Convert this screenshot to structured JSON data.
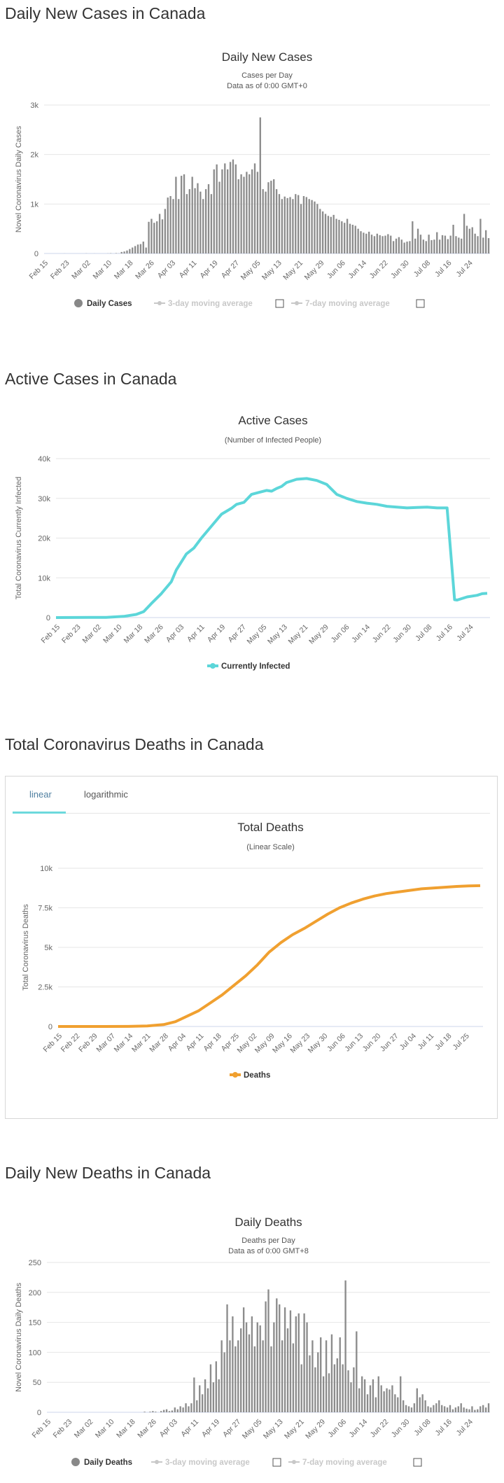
{
  "sections": {
    "daily_cases_title": "Daily New Cases in Canada",
    "active_title": "Active Cases in Canada",
    "deaths_title": "Total Coronavirus Deaths in Canada",
    "daily_deaths_title": "Daily New Deaths in Canada"
  },
  "deaths_tabs": {
    "linear": "linear",
    "log": "logarithmic"
  },
  "colors": {
    "bars": "#8c8c8c",
    "active": "#5cd6d9",
    "deaths": "#f0a030",
    "disabled": "#c8c8c8"
  },
  "chart_data": [
    {
      "type": "bar",
      "title": "Daily New Cases",
      "subtitle": "Cases per Day",
      "subtitle2": "Data as of 0:00 GMT+0",
      "ylabel": "Novel Coronavirus Daily Cases",
      "ylim": [
        0,
        3000
      ],
      "yticks": [
        "0",
        "1k",
        "2k",
        "3k"
      ],
      "xticks": [
        "Feb 15",
        "Feb 23",
        "Mar 02",
        "Mar 10",
        "Mar 18",
        "Mar 26",
        "Apr 03",
        "Apr 11",
        "Apr 19",
        "Apr 27",
        "May 05",
        "May 13",
        "May 21",
        "May 29",
        "Jun 06",
        "Jun 14",
        "Jun 22",
        "Jun 30",
        "Jul 08",
        "Jul 16",
        "Jul 24"
      ],
      "start_label": "Feb 15",
      "legend": [
        "Daily Cases",
        "3-day moving average",
        "7-day moving average"
      ],
      "values": [
        0,
        0,
        0,
        0,
        0,
        0,
        0,
        1,
        0,
        0,
        0,
        0,
        0,
        0,
        0,
        2,
        0,
        0,
        1,
        0,
        0,
        0,
        0,
        2,
        5,
        0,
        7,
        2,
        30,
        40,
        60,
        90,
        120,
        150,
        180,
        190,
        240,
        120,
        640,
        700,
        620,
        650,
        800,
        690,
        900,
        1130,
        1160,
        1100,
        1550,
        1100,
        1570,
        1600,
        1200,
        1300,
        1550,
        1320,
        1420,
        1250,
        1100,
        1300,
        1400,
        1200,
        1700,
        1800,
        1450,
        1700,
        1820,
        1700,
        1850,
        1900,
        1800,
        1500,
        1600,
        1550,
        1650,
        1600,
        1700,
        1820,
        1650,
        2750,
        1300,
        1250,
        1440,
        1470,
        1500,
        1300,
        1200,
        1100,
        1150,
        1120,
        1140,
        1100,
        1200,
        1180,
        1000,
        1160,
        1140,
        1100,
        1080,
        1050,
        1000,
        900,
        850,
        800,
        760,
        740,
        780,
        700,
        680,
        650,
        620,
        700,
        600,
        580,
        560,
        500,
        450,
        420,
        400,
        440,
        380,
        350,
        400,
        370,
        350,
        360,
        390,
        360,
        250,
        300,
        330,
        280,
        220,
        240,
        250,
        650,
        300,
        500,
        380,
        280,
        250,
        380,
        270,
        280,
        430,
        280,
        370,
        360,
        290,
        360,
        580,
        350,
        320,
        300,
        800,
        560,
        500,
        530,
        400,
        350,
        700,
        320,
        470,
        310
      ]
    },
    {
      "type": "line",
      "title": "Active Cases",
      "subtitle": "(Number of Infected People)",
      "ylabel": "Total Coronavirus Currently Infected",
      "ylim": [
        0,
        40000
      ],
      "yticks": [
        "0",
        "10k",
        "20k",
        "30k",
        "40k"
      ],
      "xticks": [
        "Feb 15",
        "Feb 23",
        "Mar 02",
        "Mar 10",
        "Mar 18",
        "Mar 26",
        "Apr 03",
        "Apr 11",
        "Apr 19",
        "Apr 27",
        "May 05",
        "May 13",
        "May 21",
        "May 29",
        "Jun 06",
        "Jun 14",
        "Jun 22",
        "Jun 30",
        "Jul 08",
        "Jul 16",
        "Jul 24"
      ],
      "start_label": "Feb 15",
      "legend": [
        "Currently Infected"
      ],
      "x": [
        0,
        20,
        27,
        32,
        35,
        38,
        42,
        46,
        48,
        52,
        55,
        58,
        62,
        66,
        70,
        72,
        75,
        78,
        81,
        84,
        86,
        88,
        90,
        92,
        96,
        100,
        104,
        108,
        112,
        116,
        120,
        124,
        128,
        132,
        136,
        140,
        144,
        148,
        152,
        156,
        159,
        160,
        164,
        168,
        170,
        172
      ],
      "values": [
        0,
        50,
        300,
        800,
        1500,
        3500,
        6000,
        9000,
        12000,
        16000,
        17500,
        20000,
        23000,
        26000,
        27500,
        28500,
        29000,
        31000,
        31500,
        32000,
        31800,
        32500,
        33000,
        34000,
        34800,
        35000,
        34500,
        33500,
        31000,
        30000,
        29200,
        28800,
        28500,
        28000,
        27800,
        27600,
        27700,
        27800,
        27600,
        27600,
        4500,
        4400,
        5200,
        5600,
        6000,
        6100
      ]
    },
    {
      "type": "line",
      "title": "Total Deaths",
      "subtitle": "(Linear Scale)",
      "ylabel": "Total Coronavirus Deaths",
      "ylim": [
        0,
        10000
      ],
      "yticks": [
        "0",
        "2.5k",
        "5k",
        "7.5k",
        "10k"
      ],
      "xticks": [
        "Feb 15",
        "Feb 22",
        "Feb 29",
        "Mar 07",
        "Mar 14",
        "Mar 21",
        "Mar 28",
        "Apr 04",
        "Apr 11",
        "Apr 18",
        "Apr 25",
        "May 02",
        "May 09",
        "May 16",
        "May 23",
        "May 30",
        "Jun 06",
        "Jun 13",
        "Jun 20",
        "Jun 27",
        "Jul 04",
        "Jul 11",
        "Jul 18",
        "Jul 25"
      ],
      "start_label": "Feb 15",
      "legend": [
        "Deaths"
      ],
      "x": [
        0,
        20,
        30,
        38,
        45,
        50,
        55,
        60,
        65,
        70,
        75,
        80,
        85,
        90,
        95,
        100,
        105,
        110,
        115,
        120,
        125,
        130,
        135,
        140,
        145,
        150,
        155,
        160,
        165,
        170,
        175,
        180
      ],
      "values": [
        0,
        1,
        5,
        30,
        120,
        300,
        650,
        1000,
        1500,
        2000,
        2600,
        3200,
        3900,
        4700,
        5300,
        5800,
        6200,
        6650,
        7100,
        7500,
        7800,
        8050,
        8250,
        8400,
        8500,
        8600,
        8700,
        8750,
        8800,
        8850,
        8880,
        8900
      ]
    },
    {
      "type": "bar",
      "title": "Daily Deaths",
      "subtitle": "Deaths per Day",
      "subtitle2": "Data as of 0:00 GMT+8",
      "ylabel": "Novel Coronavirus Daily Deaths",
      "ylim": [
        0,
        250
      ],
      "yticks": [
        "0",
        "50",
        "100",
        "150",
        "200",
        "250"
      ],
      "xticks": [
        "Feb 15",
        "Feb 23",
        "Mar 02",
        "Mar 10",
        "Mar 18",
        "Mar 26",
        "Apr 03",
        "Apr 11",
        "Apr 19",
        "Apr 27",
        "May 05",
        "May 13",
        "May 21",
        "May 29",
        "Jun 06",
        "Jun 14",
        "Jun 22",
        "Jun 30",
        "Jul 08",
        "Jul 16",
        "Jul 24"
      ],
      "start_label": "Feb 15",
      "legend": [
        "Daily Deaths",
        "3-day moving average",
        "7-day moving average"
      ],
      "values": [
        0,
        0,
        0,
        0,
        0,
        0,
        0,
        0,
        0,
        0,
        0,
        0,
        0,
        0,
        0,
        0,
        0,
        0,
        0,
        0,
        0,
        0,
        0,
        0,
        0,
        0,
        0,
        0,
        0,
        0,
        0,
        0,
        0,
        0,
        0,
        1,
        0,
        1,
        2,
        1,
        0,
        2,
        4,
        5,
        2,
        3,
        8,
        5,
        10,
        8,
        15,
        10,
        15,
        58,
        20,
        45,
        30,
        55,
        40,
        80,
        50,
        85,
        55,
        120,
        100,
        180,
        120,
        160,
        110,
        120,
        140,
        175,
        150,
        130,
        160,
        110,
        150,
        145,
        120,
        185,
        205,
        110,
        150,
        190,
        180,
        120,
        175,
        140,
        170,
        115,
        160,
        165,
        80,
        165,
        150,
        95,
        120,
        75,
        100,
        125,
        60,
        120,
        65,
        130,
        80,
        90,
        125,
        80,
        220,
        70,
        50,
        75,
        135,
        40,
        60,
        55,
        30,
        45,
        55,
        25,
        60,
        45,
        35,
        40,
        38,
        45,
        30,
        25,
        60,
        20,
        12,
        10,
        8,
        15,
        40,
        25,
        30,
        20,
        10,
        8,
        12,
        15,
        20,
        12,
        10,
        8,
        12,
        5,
        8,
        10,
        15,
        8,
        6,
        5,
        10,
        4,
        5,
        10,
        12,
        8,
        15
      ]
    }
  ]
}
